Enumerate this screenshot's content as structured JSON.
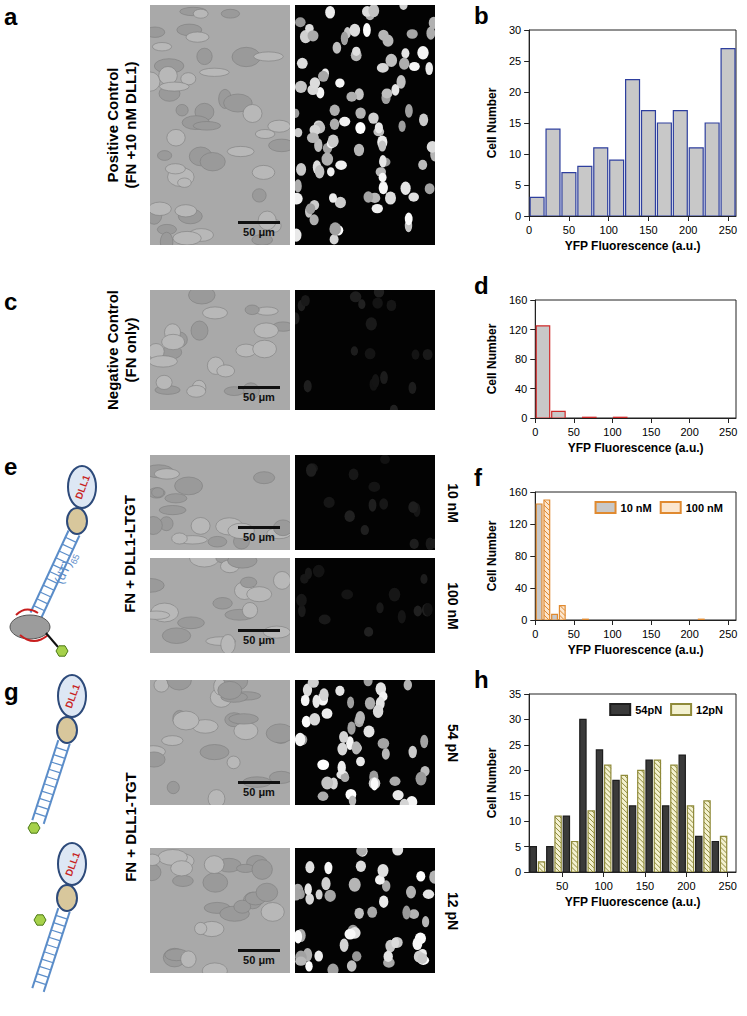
{
  "panels": [
    {
      "letter": "a",
      "label": [
        "Positive Control",
        "(FN +10 nM DLL1)"
      ],
      "rows": [
        {
          "scale_bar": "50 μm"
        }
      ]
    },
    {
      "letter": "c",
      "label": [
        "Negative Control",
        "(FN only)"
      ],
      "rows": [
        {
          "scale_bar": "50 μm"
        }
      ]
    },
    {
      "letter": "e",
      "label": [
        "FN + DLL1-LTGT"
      ],
      "rows": [
        {
          "label": "10 nM",
          "scale_bar": "50 μm"
        },
        {
          "label": "100 nM",
          "scale_bar": "50 μm"
        }
      ],
      "schematics": [
        {
          "protein": "DLL1",
          "strand": {
            "base": "(dT)",
            "subscript": "65"
          }
        }
      ]
    },
    {
      "letter": "g",
      "label": [
        "FN + DLL1-TGT"
      ],
      "rows": [
        {
          "label": "54 pN",
          "scale_bar": "50 μm"
        },
        {
          "label": "12 pN",
          "scale_bar": "50 μm"
        }
      ],
      "schematics": [
        {
          "protein": "DLL1"
        },
        {
          "protein": "DLL1"
        }
      ]
    }
  ],
  "chart_data": [
    {
      "type": "histogram",
      "panel": "b",
      "x_label": "YFP Fluorescence (a.u.)",
      "y_label": "Cell Number",
      "bins": [
        0,
        20,
        40,
        60,
        80,
        100,
        120,
        140,
        160,
        180,
        200,
        220,
        240,
        260
      ],
      "values": [
        3,
        14,
        7,
        8,
        11,
        9,
        22,
        17,
        15,
        17,
        11,
        15,
        27
      ],
      "color": "#c8c8c8",
      "xlim": [
        0,
        260
      ],
      "xticks": [
        0,
        50,
        100,
        150,
        200,
        250
      ],
      "ylim": [
        0,
        30
      ],
      "yticks": [
        0,
        5,
        10,
        15,
        20,
        25,
        30
      ],
      "grid": false
    },
    {
      "type": "histogram",
      "panel": "d",
      "x_label": "YFP Fluorescence (a.u.)",
      "y_label": "Cell Number",
      "bins": [
        0,
        20,
        40,
        60,
        80,
        100,
        120,
        140,
        160,
        180,
        200,
        220,
        240,
        260
      ],
      "values": [
        125,
        9,
        0,
        1,
        0,
        1,
        0,
        0,
        0,
        0,
        0,
        0,
        0
      ],
      "color": "#c8c8c8",
      "xlim": [
        0,
        260
      ],
      "xticks": [
        0,
        50,
        100,
        150,
        200,
        250
      ],
      "ylim": [
        0,
        160
      ],
      "yticks": [
        0,
        40,
        80,
        120,
        160
      ],
      "grid": false
    },
    {
      "type": "histogram",
      "panel": "f",
      "x_label": "YFP Fluorescence (a.u.)",
      "y_label": "Cell Number",
      "bins": [
        0,
        20,
        40,
        60,
        80,
        100,
        120,
        140,
        160,
        180,
        200,
        220,
        240,
        260
      ],
      "series": [
        {
          "name": "10 nM",
          "color": "#c8c8c8",
          "values": [
            145,
            7,
            0,
            1,
            0,
            0,
            0,
            0,
            0,
            0,
            0,
            0,
            0
          ]
        },
        {
          "name": "100 nM",
          "color": "#fbe6cf",
          "values": [
            150,
            18,
            0,
            0,
            0,
            0,
            0,
            0,
            0,
            0,
            1,
            0,
            0
          ]
        }
      ],
      "xlim": [
        0,
        260
      ],
      "xticks": [
        0,
        50,
        100,
        150,
        200,
        250
      ],
      "ylim": [
        0,
        160
      ],
      "yticks": [
        0,
        40,
        80,
        120,
        160
      ],
      "grid": false,
      "legend": "upper right"
    },
    {
      "type": "histogram",
      "panel": "h",
      "x_label": "YFP Fluorescence (a.u.)",
      "y_label": "Cell Number",
      "bins": [
        10,
        30,
        50,
        70,
        90,
        110,
        130,
        150,
        170,
        190,
        210,
        230,
        250
      ],
      "series": [
        {
          "name": "54pN",
          "color": "#3a3a3a",
          "values": [
            5,
            5,
            11,
            30,
            24,
            18,
            13,
            22,
            13,
            23,
            7,
            6
          ]
        },
        {
          "name": "12pN",
          "color": "#f3f1d0",
          "values": [
            2,
            11,
            6,
            12,
            21,
            19,
            20,
            22,
            21,
            13,
            14,
            7
          ]
        }
      ],
      "xlim": [
        10,
        260
      ],
      "xticks": [
        50,
        100,
        150,
        200,
        250
      ],
      "ylim": [
        0,
        35
      ],
      "yticks": [
        0,
        5,
        10,
        15,
        20,
        25,
        30,
        35
      ],
      "grid": false,
      "legend": "upper right"
    }
  ]
}
